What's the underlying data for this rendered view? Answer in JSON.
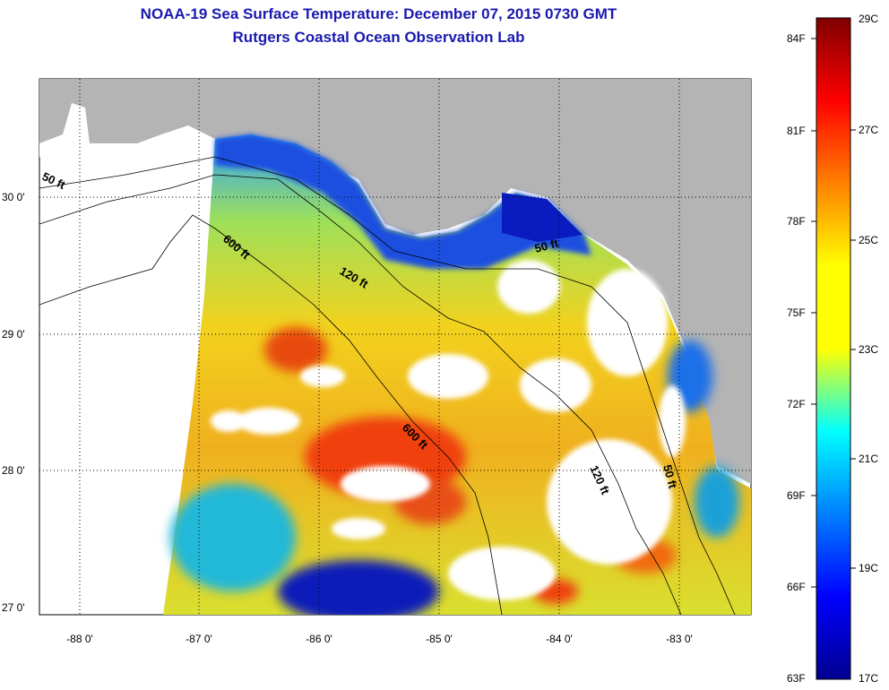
{
  "header": {
    "title": "NOAA-19 Sea Surface Temperature:  December 07, 2015 0730 GMT",
    "subtitle": "Rutgers Coastal Ocean Observation Lab"
  },
  "axes": {
    "lat_ticks": [
      {
        "value": 30,
        "label": "30 0'"
      },
      {
        "value": 29,
        "label": "29 0'"
      },
      {
        "value": 28,
        "label": "28 0'"
      },
      {
        "value": 27,
        "label": "27 0'"
      }
    ],
    "lon_ticks": [
      {
        "value": -88,
        "label": "-88 0'"
      },
      {
        "value": -87,
        "label": "-87 0'"
      },
      {
        "value": -86,
        "label": "-86 0'"
      },
      {
        "value": -85,
        "label": "-85 0'"
      },
      {
        "value": -84,
        "label": "-84 0'"
      },
      {
        "value": -83,
        "label": "-83 0'"
      }
    ]
  },
  "contours": [
    {
      "label": "50 ft"
    },
    {
      "label": "600 ft"
    },
    {
      "label": "120 ft"
    },
    {
      "label": "50 ft"
    },
    {
      "label": "600 ft"
    },
    {
      "label": "120 ft"
    },
    {
      "label": "50 ft"
    }
  ],
  "colorbar": {
    "fahrenheit": [
      "84F",
      "81F",
      "78F",
      "75F",
      "72F",
      "69F",
      "66F",
      "63F"
    ],
    "celsius": [
      "29C",
      "27C",
      "25C",
      "23C",
      "21C",
      "19C",
      "17C"
    ],
    "colors": [
      "#800000",
      "#ff0000",
      "#ff8000",
      "#ffff00",
      "#00ffff",
      "#0080ff",
      "#0000ff",
      "#00008f"
    ]
  }
}
